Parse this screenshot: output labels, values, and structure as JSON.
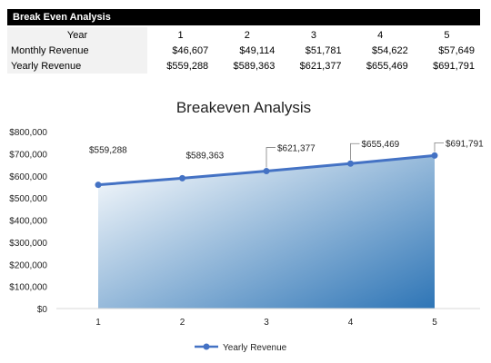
{
  "sheet": {
    "title": "Break Even Analysis",
    "header_label": "Year",
    "years": [
      "1",
      "2",
      "3",
      "4",
      "5"
    ],
    "rows": [
      {
        "label": "Monthly Revenue",
        "values": [
          "$46,607",
          "$49,114",
          "$51,781",
          "$54,622",
          "$57,649"
        ]
      },
      {
        "label": "Yearly Revenue",
        "values": [
          "$559,288",
          "$589,363",
          "$621,377",
          "$655,469",
          "$691,791"
        ]
      }
    ]
  },
  "colors": {
    "series": "#4472c4",
    "fill_dark": "#2e75b6",
    "fill_light": "#ffffff",
    "grid": "#d9d9d9"
  },
  "chart_data": {
    "type": "area",
    "title": "Breakeven Analysis",
    "categories": [
      "1",
      "2",
      "3",
      "4",
      "5"
    ],
    "series": [
      {
        "name": "Yearly Revenue",
        "values": [
          559288,
          589363,
          621377,
          655469,
          691791
        ]
      }
    ],
    "data_labels": [
      "$559,288",
      "$589,363",
      "$621,377",
      "$655,469",
      "$691,791"
    ],
    "y_ticks": [
      "$0",
      "$100,000",
      "$200,000",
      "$300,000",
      "$400,000",
      "$500,000",
      "$600,000",
      "$700,000",
      "$800,000"
    ],
    "ylim": [
      0,
      800000
    ],
    "grid": false,
    "legend": "bottom"
  }
}
